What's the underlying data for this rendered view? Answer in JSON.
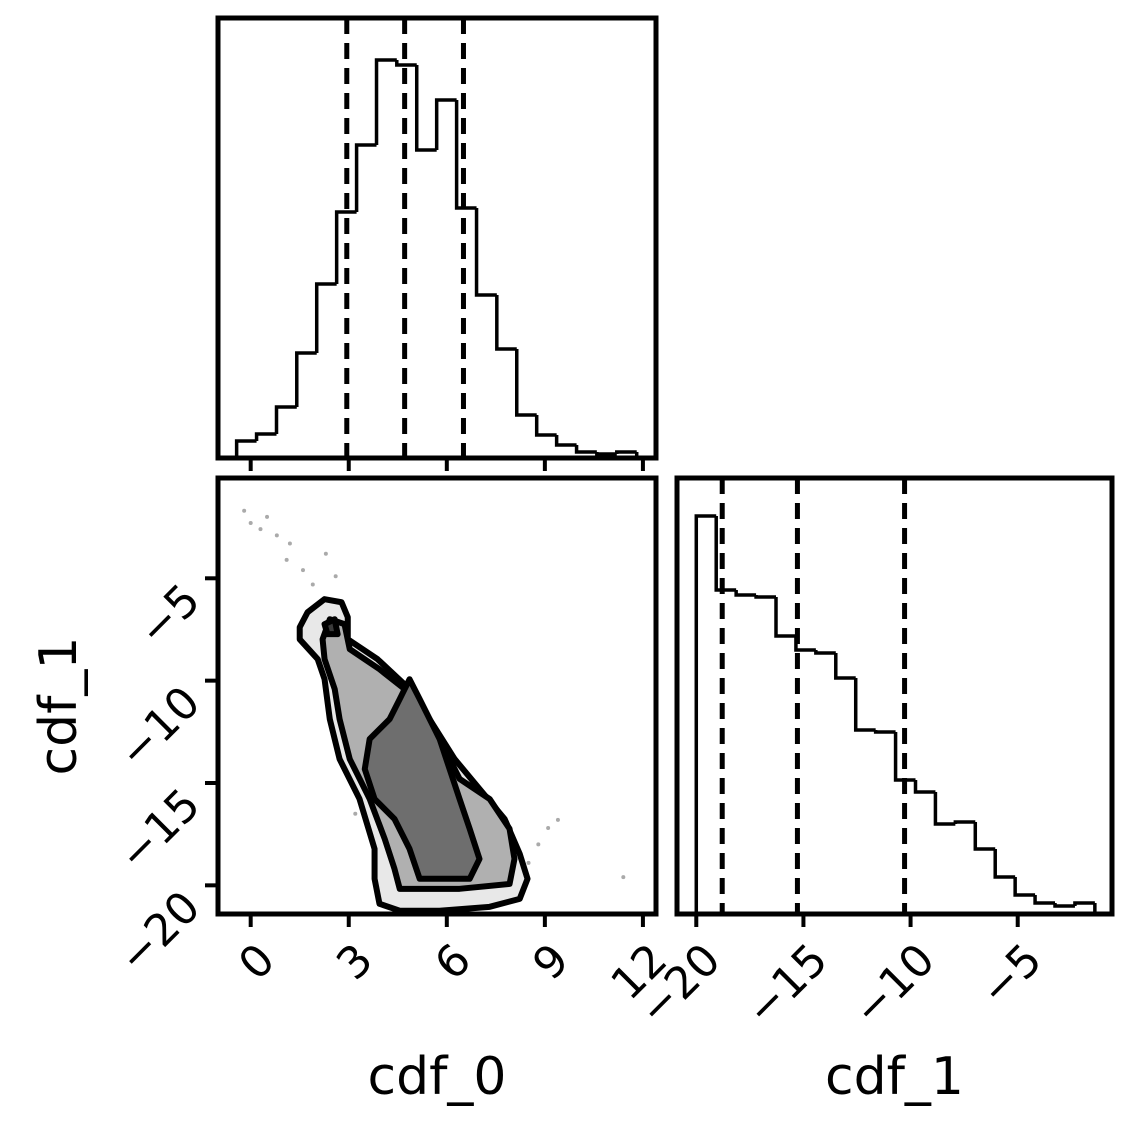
{
  "chart_data": [
    {
      "type": "histogram",
      "color": "#000000",
      "bins": [
        -0.43,
        0.18,
        0.79,
        1.41,
        2.02,
        2.63,
        3.24,
        3.85,
        4.47,
        5.08,
        5.69,
        6.3,
        6.91,
        7.53,
        8.14,
        8.75,
        9.36,
        9.97,
        10.59,
        11.2,
        11.81
      ],
      "values": [
        17,
        24,
        51,
        105,
        174,
        246,
        313,
        398,
        393,
        308,
        358,
        250,
        163,
        109,
        43,
        23,
        13,
        6,
        4,
        6
      ],
      "quantiles": [
        2.94,
        4.71,
        6.51
      ],
      "xlim": [
        -1.0,
        12.4
      ],
      "ylim": [
        0,
        440
      ],
      "xticks": [
        0,
        3,
        6,
        9,
        12
      ]
    },
    {
      "type": "contour",
      "color": "#000000",
      "xlabel": "cdf_0",
      "ylabel": "cdf_1",
      "xlim": [
        -1.0,
        12.4
      ],
      "ylim": [
        -21.4,
        -0.1
      ],
      "xticks": [
        0,
        3,
        6,
        9,
        12
      ],
      "yticks": [
        {
          "value": -5,
          "label": "−5"
        },
        {
          "value": -10,
          "label": "−10"
        },
        {
          "value": -15,
          "label": "−15"
        },
        {
          "value": -20,
          "label": "−20"
        }
      ],
      "points": {
        "x": [
          -0.2,
          0.3,
          0.8,
          1.1,
          1.6,
          0.5,
          1.9,
          2.3,
          1.2,
          9.1,
          9.4,
          8.8,
          11.4,
          3.2,
          6.9,
          0.0,
          2.6,
          8.5
        ],
        "y": [
          -1.7,
          -2.6,
          -2.9,
          -4.1,
          -4.6,
          -2.0,
          -5.3,
          -3.8,
          -3.3,
          -17.2,
          -16.8,
          -18.0,
          -19.6,
          -16.5,
          -19.9,
          -2.3,
          -4.9,
          -18.9
        ]
      },
      "contours": [
        {
          "x": [
            1.5,
            1.74,
            2.26,
            2.78,
            2.97,
            2.97,
            3.88,
            4.86,
            5.47,
            6.24,
            7.0,
            7.77,
            8.23,
            8.47,
            8.23,
            7.31,
            5.78,
            4.56,
            3.94,
            3.79,
            3.79,
            3.33,
            2.72,
            2.42,
            2.26,
            2.05,
            1.5
          ],
          "y": [
            -7.39,
            -6.66,
            -6.02,
            -6.17,
            -6.9,
            -7.98,
            -8.95,
            -10.41,
            -11.88,
            -13.83,
            -15.29,
            -16.76,
            -18.46,
            -19.68,
            -20.66,
            -21.05,
            -21.24,
            -21.24,
            -20.9,
            -19.68,
            -18.22,
            -15.78,
            -13.83,
            -11.88,
            -9.93,
            -8.95,
            -7.98
          ]
        },
        {
          "x": [
            2.2,
            2.42,
            2.87,
            3.03,
            3.94,
            4.71,
            5.17,
            5.78,
            6.39,
            7.31,
            7.92,
            8.07,
            7.92,
            6.39,
            4.56,
            4.4,
            4.1,
            3.64,
            3.03,
            2.72,
            2.57,
            2.26
          ],
          "y": [
            -7.98,
            -7.0,
            -7.24,
            -8.46,
            -9.44,
            -10.41,
            -11.39,
            -12.85,
            -14.8,
            -15.78,
            -17.24,
            -18.71,
            -19.93,
            -20.17,
            -20.17,
            -19.2,
            -17.73,
            -15.78,
            -13.83,
            -11.88,
            -10.41,
            -8.95
          ]
        },
        {
          "x": [
            3.49,
            3.64,
            4.25,
            4.56,
            4.86,
            5.17,
            5.78,
            6.39,
            6.7,
            7.0,
            6.7,
            5.17,
            4.86,
            4.4,
            3.79
          ],
          "y": [
            -14.32,
            -12.85,
            -11.88,
            -10.9,
            -9.93,
            -10.9,
            -12.85,
            -15.78,
            -17.24,
            -18.71,
            -19.68,
            -19.68,
            -18.22,
            -16.76,
            -15.78
          ]
        },
        {
          "x": [
            2.26,
            2.57,
            2.66,
            2.35
          ],
          "y": [
            -7.24,
            -7.0,
            -7.73,
            -7.73
          ]
        }
      ]
    },
    {
      "type": "histogram",
      "color": "#000000",
      "xlabel": "cdf_1",
      "bins": [
        -20.0,
        -19.07,
        -18.14,
        -17.21,
        -16.28,
        -15.35,
        -14.42,
        -13.49,
        -12.56,
        -11.63,
        -10.7,
        -9.77,
        -8.84,
        -7.91,
        -6.98,
        -6.05,
        -5.12,
        -4.19,
        -3.26,
        -2.33,
        -1.4
      ],
      "values": [
        398,
        324,
        319,
        317,
        278,
        264,
        261,
        236,
        184,
        182,
        134,
        122,
        90,
        92,
        65,
        37,
        19,
        11,
        8,
        11
      ],
      "quantiles": [
        -18.79,
        -15.28,
        -10.28
      ],
      "xlim": [
        -20.9,
        -0.6
      ],
      "ylim": [
        0,
        436
      ],
      "xticks": [
        {
          "value": -20,
          "label": "−20"
        },
        {
          "value": -15,
          "label": "−15"
        },
        {
          "value": -10,
          "label": "−10"
        },
        {
          "value": -5,
          "label": "−5"
        }
      ]
    }
  ]
}
